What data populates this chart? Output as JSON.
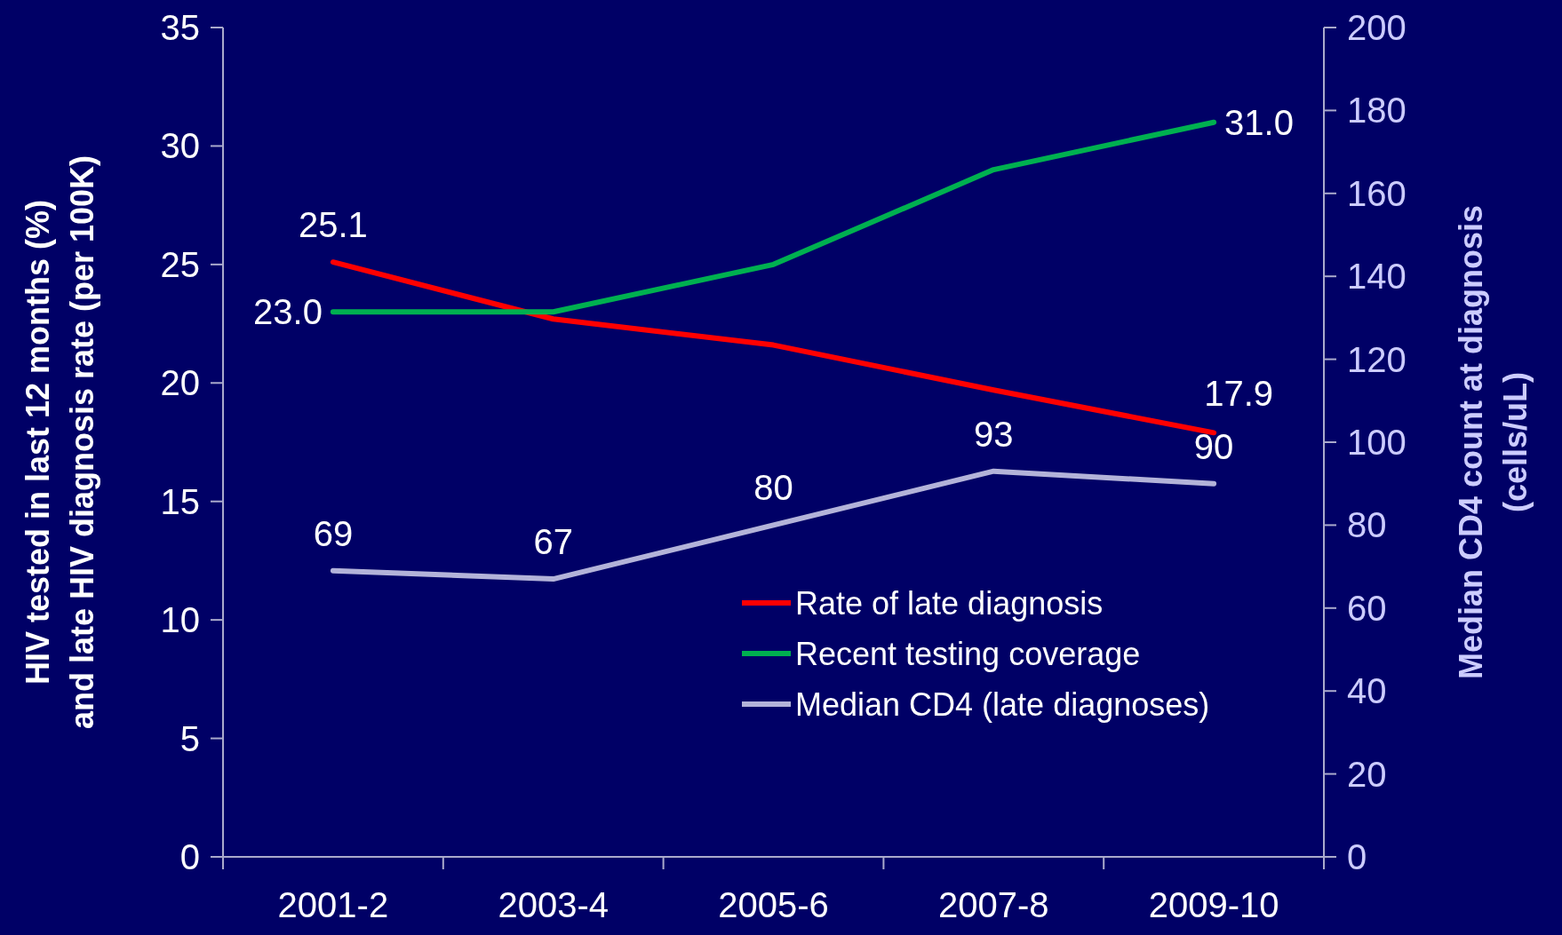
{
  "chart_data": {
    "type": "line",
    "categories": [
      "2001-2",
      "2003-4",
      "2005-6",
      "2007-8",
      "2009-10"
    ],
    "ylabel": "HIV tested in last 12 months (%)\nand late HIV diagnosis rate (per 100K)",
    "y2label": "Median CD4 count at diagnosis\n(cells/uL)",
    "ylim": [
      0,
      35
    ],
    "yticks": [
      0,
      5,
      10,
      15,
      20,
      25,
      30,
      35
    ],
    "y2lim": [
      0,
      200
    ],
    "y2ticks": [
      0,
      20,
      40,
      60,
      80,
      100,
      120,
      140,
      160,
      180,
      200
    ],
    "series": [
      {
        "name": "Rate of late diagnosis",
        "color": "#ff0000",
        "values": [
          25.1,
          22.7,
          21.6,
          19.7,
          17.9
        ],
        "value_labels": [
          "25.1",
          null,
          null,
          null,
          "17.9"
        ]
      },
      {
        "name": "Recent testing coverage",
        "color": "#00b050",
        "values": [
          23.0,
          23.0,
          25.0,
          29.0,
          31.0
        ],
        "value_labels": [
          "23.0",
          null,
          null,
          null,
          "31.0"
        ]
      },
      {
        "name": "Median CD4 (late diagnoses)",
        "color": "#b3b3d9",
        "axis": "y2",
        "values": [
          69,
          67,
          80,
          93,
          90
        ],
        "value_labels": [
          "69",
          "67",
          "80",
          "93",
          "90"
        ]
      }
    ],
    "legend": "bottom right",
    "grid": false
  }
}
